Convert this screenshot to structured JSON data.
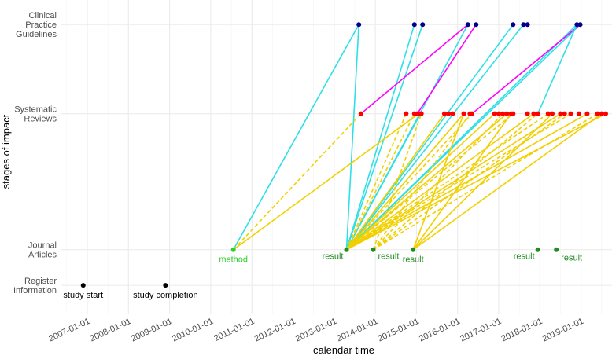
{
  "chart_data": {
    "type": "scatter",
    "title": "",
    "xlabel": "calendar time",
    "ylabel": "stages of impact",
    "xlim": [
      2006.2,
      2020.55
    ],
    "x_ticks": [
      {
        "value": 2007,
        "label": "2007-01-01"
      },
      {
        "value": 2008,
        "label": "2008-01-01"
      },
      {
        "value": 2009,
        "label": "2009-01-01"
      },
      {
        "value": 2010,
        "label": "2010-01-01"
      },
      {
        "value": 2011,
        "label": "2011-01-01"
      },
      {
        "value": 2012,
        "label": "2012-01-01"
      },
      {
        "value": 2013,
        "label": "2013-01-01"
      },
      {
        "value": 2014,
        "label": "2014-01-01"
      },
      {
        "value": 2015,
        "label": "2015-01-01"
      },
      {
        "value": 2016,
        "label": "2016-01-01"
      },
      {
        "value": 2017,
        "label": "2017-01-01"
      },
      {
        "value": 2018,
        "label": "2018-01-01"
      },
      {
        "value": 2019,
        "label": "2019-01-01"
      }
    ],
    "y_levels": [
      {
        "value": 1,
        "lines": [
          "Register",
          "Information"
        ]
      },
      {
        "value": 2,
        "lines": [
          "Journal",
          "Articles"
        ]
      },
      {
        "value": 3,
        "lines": [
          "Systematic",
          "Reviews"
        ]
      },
      {
        "value": 4,
        "lines": [
          "Clinical",
          "Practice",
          "Guidelines"
        ]
      }
    ],
    "y_positions": {
      "1": 1.0,
      "2": 1.8,
      "3": 4.85,
      "4": 6.85
    },
    "ylim": [
      0.35,
      7.4
    ],
    "colors": {
      "register": "#000000",
      "article": "#228b22",
      "method": "#32cd32",
      "review": "#ff0000",
      "guideline": "#00008b",
      "gold": "#f2d000",
      "cyan": "#2ee0e6",
      "magenta": "#ff00ff"
    },
    "register_points": [
      {
        "x": 2006.9,
        "y": 1,
        "label": "study start",
        "label_pos": "below"
      },
      {
        "x": 2008.9,
        "y": 1,
        "label": "study completion",
        "label_pos": "below"
      }
    ],
    "article_points": [
      {
        "x": 2010.55,
        "y": 2,
        "kind": "method",
        "label": "method",
        "label_pos": "below"
      },
      {
        "x": 2013.3,
        "y": 2,
        "kind": "result",
        "label": "result",
        "label_pos": "left"
      },
      {
        "x": 2013.95,
        "y": 2,
        "kind": "result",
        "label": "result",
        "label_pos": "right"
      },
      {
        "x": 2014.92,
        "y": 2,
        "kind": "result",
        "label": "result",
        "label_pos": "below"
      },
      {
        "x": 2017.95,
        "y": 2,
        "kind": "result",
        "label": "result",
        "label_pos": "left"
      },
      {
        "x": 2018.4,
        "y": 2,
        "kind": "result",
        "label": "result",
        "label_pos": "below-right"
      }
    ],
    "review_points": [
      {
        "x": 2013.65,
        "y": 3
      },
      {
        "x": 2014.75,
        "y": 3
      },
      {
        "x": 2014.95,
        "y": 3
      },
      {
        "x": 2015.02,
        "y": 3
      },
      {
        "x": 2015.1,
        "y": 3
      },
      {
        "x": 2015.12,
        "y": 3
      },
      {
        "x": 2015.68,
        "y": 3
      },
      {
        "x": 2015.78,
        "y": 3
      },
      {
        "x": 2015.88,
        "y": 3
      },
      {
        "x": 2016.15,
        "y": 3
      },
      {
        "x": 2016.3,
        "y": 3
      },
      {
        "x": 2016.35,
        "y": 3
      },
      {
        "x": 2016.9,
        "y": 3
      },
      {
        "x": 2017.0,
        "y": 3
      },
      {
        "x": 2017.1,
        "y": 3
      },
      {
        "x": 2017.2,
        "y": 3
      },
      {
        "x": 2017.3,
        "y": 3
      },
      {
        "x": 2017.35,
        "y": 3
      },
      {
        "x": 2017.7,
        "y": 3
      },
      {
        "x": 2017.85,
        "y": 3
      },
      {
        "x": 2017.95,
        "y": 3
      },
      {
        "x": 2018.2,
        "y": 3
      },
      {
        "x": 2018.3,
        "y": 3
      },
      {
        "x": 2018.5,
        "y": 3
      },
      {
        "x": 2018.6,
        "y": 3
      },
      {
        "x": 2018.75,
        "y": 3
      },
      {
        "x": 2018.95,
        "y": 3
      },
      {
        "x": 2019.15,
        "y": 3
      },
      {
        "x": 2019.4,
        "y": 3
      },
      {
        "x": 2019.5,
        "y": 3
      },
      {
        "x": 2019.6,
        "y": 3
      }
    ],
    "guideline_points": [
      {
        "x": 2013.6,
        "y": 4
      },
      {
        "x": 2014.95,
        "y": 4
      },
      {
        "x": 2015.15,
        "y": 4
      },
      {
        "x": 2016.25,
        "y": 4
      },
      {
        "x": 2016.45,
        "y": 4
      },
      {
        "x": 2017.35,
        "y": 4
      },
      {
        "x": 2017.6,
        "y": 4
      },
      {
        "x": 2017.7,
        "y": 4
      },
      {
        "x": 2018.9,
        "y": 4
      },
      {
        "x": 2018.98,
        "y": 4
      }
    ],
    "segments": [
      {
        "x1": 2010.55,
        "y1": 2,
        "x2": 2013.6,
        "y2": 4,
        "color": "cyan",
        "dash": false
      },
      {
        "x1": 2013.3,
        "y1": 2,
        "x2": 2013.6,
        "y2": 4,
        "color": "cyan",
        "dash": false
      },
      {
        "x1": 2013.3,
        "y1": 2,
        "x2": 2014.95,
        "y2": 4,
        "color": "cyan",
        "dash": false
      },
      {
        "x1": 2013.3,
        "y1": 2,
        "x2": 2015.15,
        "y2": 4,
        "color": "cyan",
        "dash": false
      },
      {
        "x1": 2013.3,
        "y1": 2,
        "x2": 2016.25,
        "y2": 4,
        "color": "cyan",
        "dash": false
      },
      {
        "x1": 2013.3,
        "y1": 2,
        "x2": 2017.35,
        "y2": 4,
        "color": "cyan",
        "dash": false
      },
      {
        "x1": 2013.3,
        "y1": 2,
        "x2": 2017.6,
        "y2": 4,
        "color": "cyan",
        "dash": false
      },
      {
        "x1": 2013.3,
        "y1": 2,
        "x2": 2018.9,
        "y2": 4,
        "color": "cyan",
        "dash": false
      },
      {
        "x1": 2013.3,
        "y1": 2,
        "x2": 2018.98,
        "y2": 4,
        "color": "cyan",
        "dash": false
      },
      {
        "x1": 2013.3,
        "y1": 2,
        "x2": 2015.1,
        "y2": 3,
        "color": "cyan",
        "dash": false
      },
      {
        "x1": 2013.65,
        "y1": 3,
        "x2": 2016.25,
        "y2": 4,
        "color": "magenta",
        "dash": false
      },
      {
        "x1": 2015.02,
        "y1": 3,
        "x2": 2016.45,
        "y2": 4,
        "color": "magenta",
        "dash": false
      },
      {
        "x1": 2016.35,
        "y1": 3,
        "x2": 2018.98,
        "y2": 4,
        "color": "magenta",
        "dash": false
      },
      {
        "x1": 2017.95,
        "y1": 3,
        "x2": 2018.9,
        "y2": 4,
        "color": "cyan",
        "dash": false
      },
      {
        "x1": 2010.55,
        "y1": 2,
        "x2": 2013.65,
        "y2": 3,
        "color": "gold",
        "dash": true
      },
      {
        "x1": 2010.55,
        "y1": 2,
        "x2": 2015.05,
        "y2": 3,
        "color": "gold",
        "dash": false
      },
      {
        "x1": 2013.3,
        "y1": 2,
        "x2": 2014.75,
        "y2": 3,
        "color": "gold",
        "dash": true
      },
      {
        "x1": 2013.3,
        "y1": 2,
        "x2": 2014.95,
        "y2": 3,
        "color": "gold",
        "dash": true
      },
      {
        "x1": 2013.3,
        "y1": 2,
        "x2": 2015.68,
        "y2": 3,
        "color": "gold",
        "dash": false
      },
      {
        "x1": 2013.3,
        "y1": 2,
        "x2": 2016.15,
        "y2": 3,
        "color": "gold",
        "dash": false
      },
      {
        "x1": 2013.3,
        "y1": 2,
        "x2": 2016.9,
        "y2": 3,
        "color": "gold",
        "dash": false
      },
      {
        "x1": 2013.3,
        "y1": 2,
        "x2": 2017.2,
        "y2": 3,
        "color": "gold",
        "dash": false
      },
      {
        "x1": 2013.3,
        "y1": 2,
        "x2": 2017.85,
        "y2": 3,
        "color": "gold",
        "dash": false
      },
      {
        "x1": 2013.3,
        "y1": 2,
        "x2": 2018.5,
        "y2": 3,
        "color": "gold",
        "dash": false
      },
      {
        "x1": 2013.3,
        "y1": 2,
        "x2": 2019.15,
        "y2": 3,
        "color": "gold",
        "dash": false
      },
      {
        "x1": 2013.3,
        "y1": 2,
        "x2": 2019.6,
        "y2": 3,
        "color": "gold",
        "dash": false
      },
      {
        "x1": 2013.95,
        "y1": 2,
        "x2": 2015.12,
        "y2": 3,
        "color": "gold",
        "dash": true
      },
      {
        "x1": 2013.95,
        "y1": 2,
        "x2": 2016.3,
        "y2": 3,
        "color": "gold",
        "dash": true
      },
      {
        "x1": 2013.95,
        "y1": 2,
        "x2": 2017.1,
        "y2": 3,
        "color": "gold",
        "dash": true
      },
      {
        "x1": 2013.95,
        "y1": 2,
        "x2": 2017.95,
        "y2": 3,
        "color": "gold",
        "dash": true
      },
      {
        "x1": 2013.95,
        "y1": 2,
        "x2": 2018.6,
        "y2": 3,
        "color": "gold",
        "dash": true
      },
      {
        "x1": 2013.95,
        "y1": 2,
        "x2": 2019.4,
        "y2": 3,
        "color": "gold",
        "dash": true
      },
      {
        "x1": 2014.92,
        "y1": 2,
        "x2": 2016.15,
        "y2": 3,
        "color": "gold",
        "dash": false
      },
      {
        "x1": 2014.92,
        "y1": 2,
        "x2": 2017.3,
        "y2": 3,
        "color": "gold",
        "dash": false
      },
      {
        "x1": 2014.92,
        "y1": 2,
        "x2": 2018.3,
        "y2": 3,
        "color": "gold",
        "dash": false
      },
      {
        "x1": 2014.92,
        "y1": 2,
        "x2": 2019.5,
        "y2": 3,
        "color": "gold",
        "dash": false
      },
      {
        "x1": 2013.3,
        "y1": 2,
        "x2": 2016.35,
        "y2": 3,
        "color": "gold",
        "dash": true
      },
      {
        "x1": 2013.3,
        "y1": 2,
        "x2": 2017.35,
        "y2": 3,
        "color": "gold",
        "dash": true
      },
      {
        "x1": 2013.3,
        "y1": 2,
        "x2": 2018.75,
        "y2": 3,
        "color": "gold",
        "dash": true
      },
      {
        "x1": 2013.3,
        "y1": 2,
        "x2": 2018.2,
        "y2": 3,
        "color": "gold",
        "dash": true
      }
    ]
  }
}
